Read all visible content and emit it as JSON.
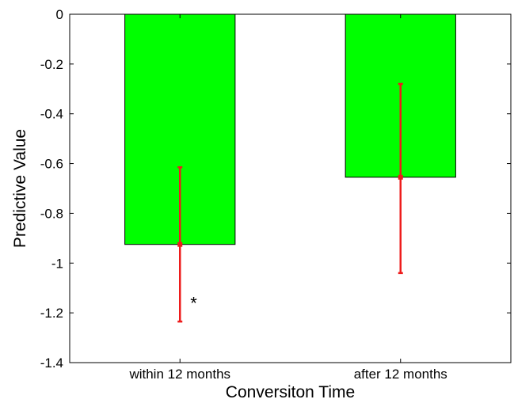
{
  "chart_data": {
    "type": "bar",
    "categories": [
      "within 12 months",
      "after 12 months"
    ],
    "values": [
      -0.925,
      -0.655
    ],
    "error_low": [
      -1.235,
      -1.04
    ],
    "error_high": [
      -0.615,
      -0.28
    ],
    "xlabel": "Conversiton Time",
    "ylabel": "Predictive Value",
    "ylim": [
      -1.4,
      0
    ],
    "yticks": [
      "0",
      "-0.2",
      "-0.4",
      "-0.6",
      "-0.8",
      "-1",
      "-1.2",
      "-1.4"
    ],
    "ytick_values": [
      0,
      -0.2,
      -0.4,
      -0.6,
      -0.8,
      -1,
      -1.2,
      -1.4
    ],
    "grid": false,
    "annotations": [
      {
        "text": "*",
        "category": "within 12 months",
        "y": -1.14
      }
    ],
    "colors": {
      "bar": "#00ff00",
      "error_bar": "#ee1c1c",
      "axis": "#000000"
    }
  }
}
